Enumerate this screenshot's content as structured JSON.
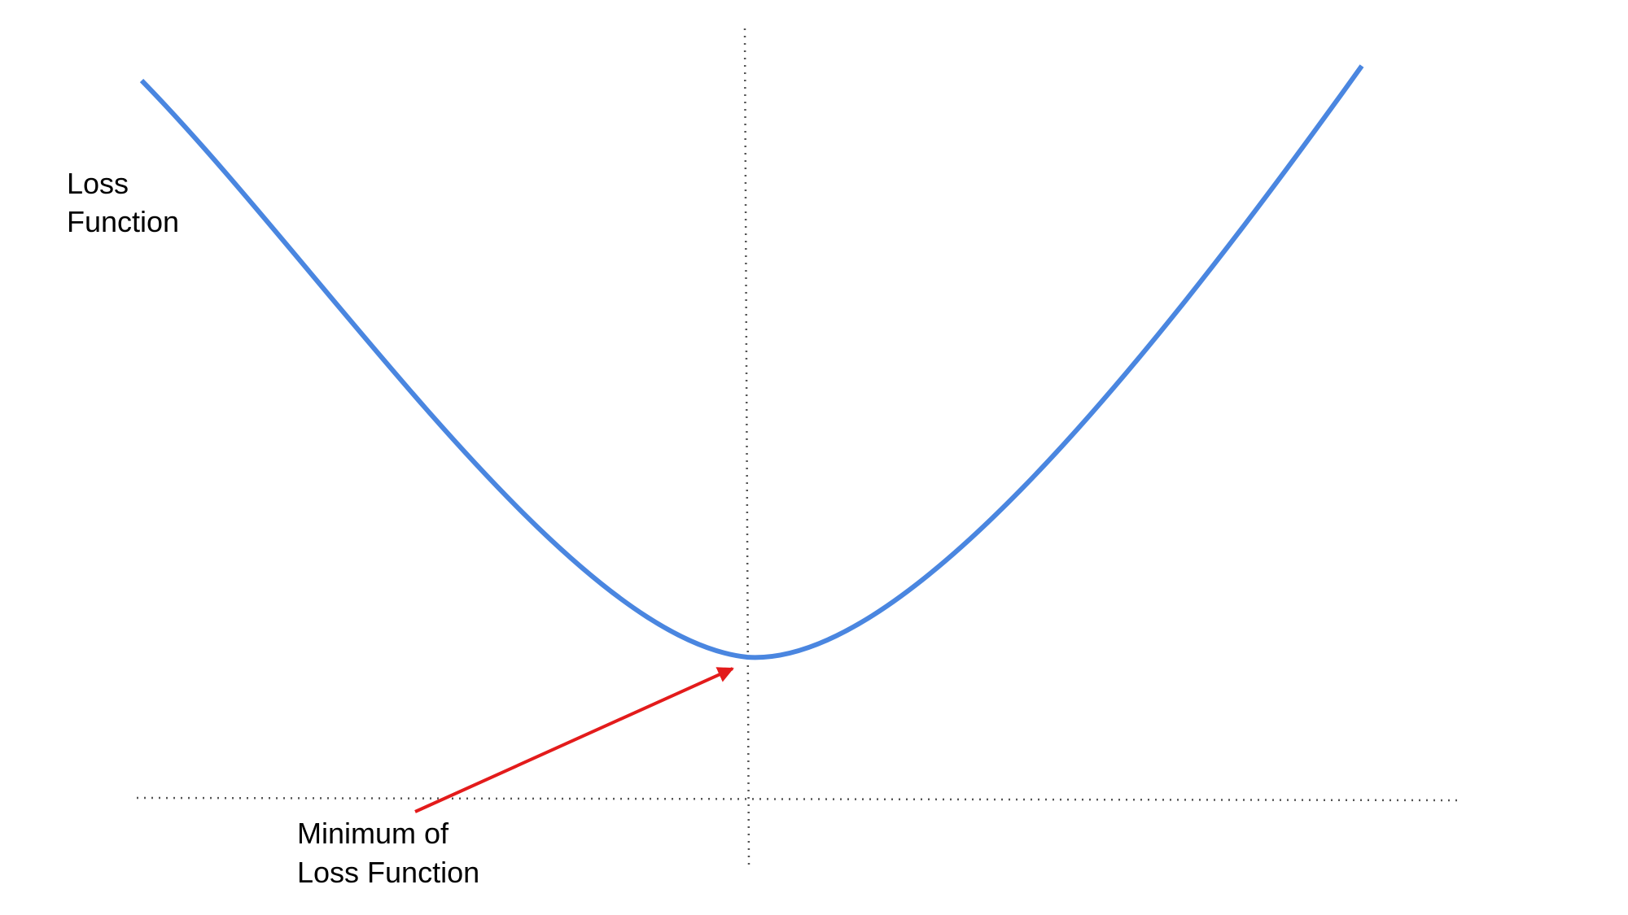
{
  "curve": {
    "y_label_line1": "Loss",
    "y_label_line2": "Function",
    "color": "#4a86e0"
  },
  "annotation": {
    "line1": "Minimum of",
    "line2": "Loss Function",
    "arrow_color": "#e31b1b"
  },
  "guides": {
    "color": "#555555",
    "style": "dotted"
  }
}
